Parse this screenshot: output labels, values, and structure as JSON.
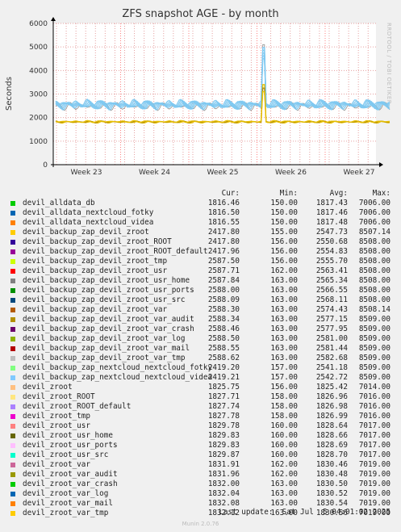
{
  "chart_data": {
    "type": "line",
    "title": "ZFS snapshot AGE - by month",
    "ylabel": "Seconds",
    "ylim": [
      0,
      6000
    ],
    "yticks": [
      0,
      1000,
      2000,
      3000,
      4000,
      5000,
      6000
    ],
    "xticks": [
      "Week 23",
      "Week 24",
      "Week 25",
      "Week 26",
      "Week 27"
    ],
    "grid": true,
    "side_label": "RRDTOOL / TOBI OETIKER",
    "columns": {
      "cur": "Cur:",
      "min": "Min:",
      "avg": "Avg:",
      "max": "Max:"
    },
    "envelope": {
      "upper_band": {
        "base": 2550,
        "amplitude": 180,
        "color": "#7ec8f0"
      },
      "lower_line": {
        "base": 1820,
        "amplitude": 45,
        "color": "#e8c000"
      },
      "spike": {
        "week": 25.6,
        "upper": 5100,
        "lower": 3400
      }
    },
    "series": [
      {
        "name": "devil_alldata_db",
        "color": "#00cc00",
        "cur": "1816.46",
        "min": "150.00",
        "avg": "1817.43",
        "max": "7006.00"
      },
      {
        "name": "devil_alldata_nextcloud_fotky",
        "color": "#0066b3",
        "cur": "1816.50",
        "min": "150.00",
        "avg": "1817.46",
        "max": "7006.00"
      },
      {
        "name": "devil_alldata_nextcloud_videa",
        "color": "#ff8000",
        "cur": "1816.55",
        "min": "150.00",
        "avg": "1817.48",
        "max": "7006.00"
      },
      {
        "name": "devil_backup_zap_devil_zroot",
        "color": "#ffcc00",
        "cur": "2417.80",
        "min": "155.00",
        "avg": "2547.73",
        "max": "8507.14"
      },
      {
        "name": "devil_backup_zap_devil_zroot_ROOT",
        "color": "#330099",
        "cur": "2417.80",
        "min": "156.00",
        "avg": "2550.68",
        "max": "8508.00"
      },
      {
        "name": "devil_backup_zap_devil_zroot_ROOT_default",
        "color": "#990099",
        "cur": "2417.96",
        "min": "156.00",
        "avg": "2554.83",
        "max": "8508.00"
      },
      {
        "name": "devil_backup_zap_devil_zroot_tmp",
        "color": "#ccff00",
        "cur": "2587.50",
        "min": "156.00",
        "avg": "2555.70",
        "max": "8508.00"
      },
      {
        "name": "devil_backup_zap_devil_zroot_usr",
        "color": "#ff0000",
        "cur": "2587.71",
        "min": "162.00",
        "avg": "2563.41",
        "max": "8508.00"
      },
      {
        "name": "devil_backup_zap_devil_zroot_usr_home",
        "color": "#808080",
        "cur": "2587.84",
        "min": "163.00",
        "avg": "2565.34",
        "max": "8508.00"
      },
      {
        "name": "devil_backup_zap_devil_zroot_usr_ports",
        "color": "#008f00",
        "cur": "2588.00",
        "min": "163.00",
        "avg": "2566.55",
        "max": "8508.00"
      },
      {
        "name": "devil_backup_zap_devil_zroot_usr_src",
        "color": "#00487d",
        "cur": "2588.09",
        "min": "163.00",
        "avg": "2568.11",
        "max": "8508.00"
      },
      {
        "name": "devil_backup_zap_devil_zroot_var",
        "color": "#b35a00",
        "cur": "2588.30",
        "min": "163.00",
        "avg": "2574.43",
        "max": "8508.14"
      },
      {
        "name": "devil_backup_zap_devil_zroot_var_audit",
        "color": "#b38f00",
        "cur": "2588.34",
        "min": "163.00",
        "avg": "2577.15",
        "max": "8509.00"
      },
      {
        "name": "devil_backup_zap_devil_zroot_var_crash",
        "color": "#6b006b",
        "cur": "2588.46",
        "min": "163.00",
        "avg": "2577.95",
        "max": "8509.00"
      },
      {
        "name": "devil_backup_zap_devil_zroot_var_log",
        "color": "#8fb300",
        "cur": "2588.50",
        "min": "163.00",
        "avg": "2581.00",
        "max": "8509.00"
      },
      {
        "name": "devil_backup_zap_devil_zroot_var_mail",
        "color": "#b30000",
        "cur": "2588.55",
        "min": "163.00",
        "avg": "2581.44",
        "max": "8509.00"
      },
      {
        "name": "devil_backup_zap_devil_zroot_var_tmp",
        "color": "#bebebe",
        "cur": "2588.62",
        "min": "163.00",
        "avg": "2582.68",
        "max": "8509.00"
      },
      {
        "name": "devil_backup_zap_nextcloud_nextcloud_fotky",
        "color": "#80ff80",
        "cur": "2419.20",
        "min": "157.00",
        "avg": "2541.18",
        "max": "8509.00"
      },
      {
        "name": "devil_backup_zap_nextcloud_nextcloud_videa",
        "color": "#80c9ff",
        "cur": "2419.21",
        "min": "157.00",
        "avg": "2542.72",
        "max": "8509.00"
      },
      {
        "name": "devil_zroot",
        "color": "#ffc080",
        "cur": "1825.75",
        "min": "156.00",
        "avg": "1825.42",
        "max": "7014.00"
      },
      {
        "name": "devil_zroot_ROOT",
        "color": "#ffe680",
        "cur": "1827.71",
        "min": "158.00",
        "avg": "1826.96",
        "max": "7016.00"
      },
      {
        "name": "devil_zroot_ROOT_default",
        "color": "#aa80ff",
        "cur": "1827.74",
        "min": "158.00",
        "avg": "1826.98",
        "max": "7016.00"
      },
      {
        "name": "devil_zroot_tmp",
        "color": "#ee00cc",
        "cur": "1827.78",
        "min": "158.00",
        "avg": "1826.99",
        "max": "7016.00"
      },
      {
        "name": "devil_zroot_usr",
        "color": "#ff8080",
        "cur": "1829.78",
        "min": "160.00",
        "avg": "1828.64",
        "max": "7017.00"
      },
      {
        "name": "devil_zroot_usr_home",
        "color": "#666600",
        "cur": "1829.83",
        "min": "160.00",
        "avg": "1828.66",
        "max": "7017.00"
      },
      {
        "name": "devil_zroot_usr_ports",
        "color": "#ffbfff",
        "cur": "1829.83",
        "min": "160.00",
        "avg": "1828.69",
        "max": "7017.00"
      },
      {
        "name": "devil_zroot_usr_src",
        "color": "#00ffcc",
        "cur": "1829.87",
        "min": "160.00",
        "avg": "1828.70",
        "max": "7017.00"
      },
      {
        "name": "devil_zroot_var",
        "color": "#cc6699",
        "cur": "1831.91",
        "min": "162.00",
        "avg": "1830.46",
        "max": "7019.00"
      },
      {
        "name": "devil_zroot_var_audit",
        "color": "#999900",
        "cur": "1831.96",
        "min": "162.00",
        "avg": "1830.48",
        "max": "7019.00"
      },
      {
        "name": "devil_zroot_var_crash",
        "color": "#00cc00",
        "cur": "1832.00",
        "min": "163.00",
        "avg": "1830.50",
        "max": "7019.00"
      },
      {
        "name": "devil_zroot_var_log",
        "color": "#0066b3",
        "cur": "1832.04",
        "min": "163.00",
        "avg": "1830.52",
        "max": "7019.00"
      },
      {
        "name": "devil_zroot_var_mail",
        "color": "#ff8000",
        "cur": "1832.08",
        "min": "163.00",
        "avg": "1830.54",
        "max": "7019.00"
      },
      {
        "name": "devil_zroot_var_tmp",
        "color": "#ffcc00",
        "cur": "1832.12",
        "min": "163.00",
        "avg": "1830.56",
        "max": "7019.00"
      }
    ]
  },
  "footer": {
    "last_update": "Last update:  Sat Jul  5 04:01:02 2025",
    "version": "Munin 2.0.76"
  }
}
